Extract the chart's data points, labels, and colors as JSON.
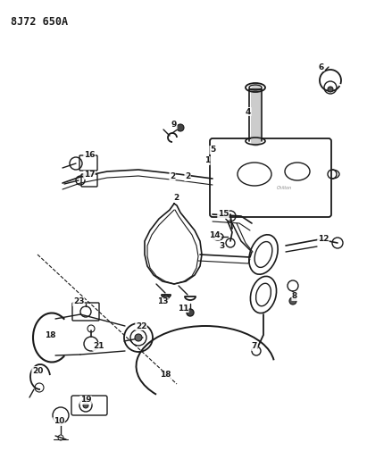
{
  "title": "8J72 650A",
  "bg_color": "#ffffff",
  "fg_color": "#1a1a1a",
  "fig_width": 4.11,
  "fig_height": 5.33,
  "dpi": 100
}
